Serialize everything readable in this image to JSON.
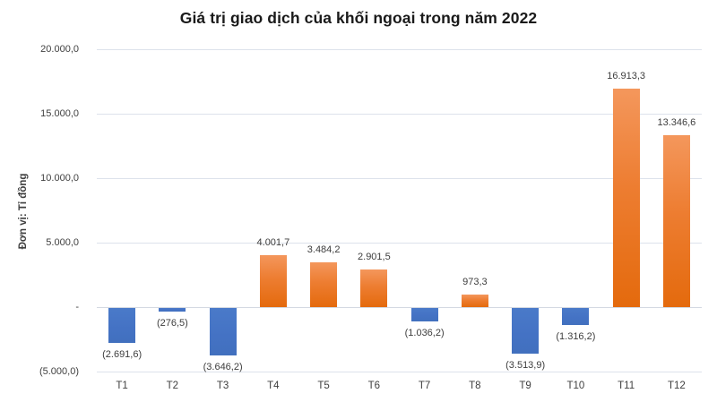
{
  "chart_data": {
    "type": "bar",
    "title": "Giá trị giao dịch của khối ngoại trong năm 2022",
    "ylabel": "Đơn vị: Tỉ đồng",
    "xlabel": "",
    "categories": [
      "T1",
      "T2",
      "T3",
      "T4",
      "T5",
      "T6",
      "T7",
      "T8",
      "T9",
      "T10",
      "T11",
      "T12"
    ],
    "values": [
      -2691.6,
      -276.5,
      -3646.2,
      4001.7,
      3484.2,
      2901.5,
      -1036.2,
      973.3,
      -3513.9,
      -1316.2,
      16913.3,
      13346.6
    ],
    "data_labels": [
      "(2.691,6)",
      "(276,5)",
      "(3.646,2)",
      "4.001,7",
      "3.484,2",
      "2.901,5",
      "(1.036,2)",
      "973,3",
      "(3.513,9)",
      "(1.316,2)",
      "16.913,3",
      "13.346,6"
    ],
    "y_tick_values": [
      20000,
      15000,
      10000,
      5000,
      0,
      -5000
    ],
    "y_tick_labels": [
      "20.000,0",
      "15.000,0",
      "10.000,0",
      "5.000,0",
      "-",
      "(5.000,0)"
    ],
    "ylim": [
      -5000,
      20000
    ],
    "grid": true,
    "legend": "none",
    "colors": {
      "positive_bar": "#ED7D31",
      "positive_bar_gradient_top": "#F4975C",
      "positive_bar_gradient_bottom": "#E46A0D",
      "negative_bar": "#4472C4",
      "gridline": "#DDE2EB",
      "label_text": "#404040",
      "title_text": "#1A1A1A"
    }
  }
}
